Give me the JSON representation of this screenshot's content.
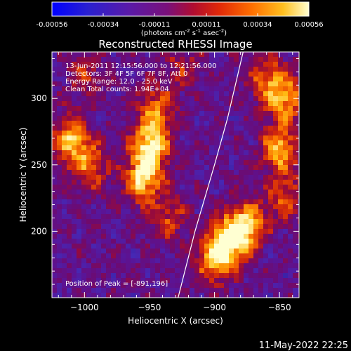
{
  "colorbar": {
    "ticks": [
      "-0.00056",
      "-0.00034",
      "-0.00011",
      "0.00011",
      "0.00034",
      "0.00056"
    ],
    "unit_label_main": "(photons cm",
    "unit_sup1": "-2",
    "unit_mid": " s",
    "unit_sup2": "-1",
    "unit_mid2": " asec",
    "unit_sup3": "-2",
    "unit_end": ")",
    "colors": [
      "#0000ff",
      "#3b2cc8",
      "#6a20a0",
      "#a01060",
      "#d02010",
      "#f05000",
      "#ffa000",
      "#ffe040",
      "#ffffff"
    ]
  },
  "info": {
    "time_range": "13-Jun-2011 12:15:56.000 to 12:21:56.000",
    "detectors": "Detectors: 3F 4F 5F 6F 7F 8F, Att 0",
    "energy": "Energy Range: 12.0 - 25.0 keV",
    "clean": "Clean     Total counts: 1.94E+04",
    "peak": "Position of Peak = [-891,196]"
  },
  "footer": {
    "timestamp": "11-May-2022 22:25"
  },
  "chart_data": {
    "type": "heatmap",
    "title": "Reconstructed RHESSI Image",
    "xlabel": "Heliocentric X (arcsec)",
    "ylabel": "Heliocentric Y (arcsec)",
    "xlim": [
      -1025,
      -835
    ],
    "ylim": [
      150,
      335
    ],
    "xticks": [
      -1000,
      -950,
      -900,
      -850
    ],
    "yticks": [
      200,
      250,
      300
    ],
    "x_tick_labels": [
      "−1000",
      "−950",
      "−900",
      "−850"
    ],
    "y_tick_labels": [
      "200",
      "250",
      "300"
    ],
    "colorbar_range": [
      -0.00056,
      0.00056
    ],
    "peak_position": [
      -891,
      196
    ],
    "sources": [
      {
        "x": -950,
        "y": 262,
        "strength": 1.0
      },
      {
        "x": -955,
        "y": 238,
        "strength": 0.85
      },
      {
        "x": -945,
        "y": 290,
        "strength": 0.7
      },
      {
        "x": -1010,
        "y": 268,
        "strength": 0.85
      },
      {
        "x": -995,
        "y": 248,
        "strength": 0.6
      },
      {
        "x": -890,
        "y": 192,
        "strength": 1.0
      },
      {
        "x": -875,
        "y": 205,
        "strength": 0.9
      },
      {
        "x": -900,
        "y": 178,
        "strength": 0.7
      },
      {
        "x": -850,
        "y": 262,
        "strength": 0.85
      },
      {
        "x": -845,
        "y": 300,
        "strength": 0.75
      },
      {
        "x": -860,
        "y": 315,
        "strength": 0.6
      },
      {
        "x": -845,
        "y": 225,
        "strength": 0.55
      },
      {
        "x": -935,
        "y": 210,
        "strength": 0.45
      },
      {
        "x": -1000,
        "y": 318,
        "strength": 0.4
      },
      {
        "x": -925,
        "y": 325,
        "strength": 0.35
      }
    ],
    "limb_curve": [
      [
        -928,
        150
      ],
      [
        -915,
        200
      ],
      [
        -900,
        250
      ],
      [
        -890,
        285
      ],
      [
        -878,
        335
      ]
    ]
  }
}
